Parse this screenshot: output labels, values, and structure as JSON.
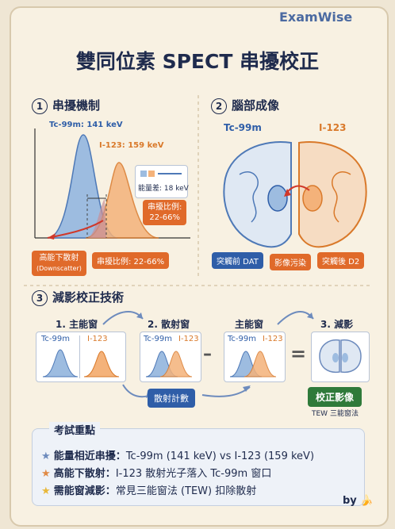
{
  "brand": "ExamWise",
  "title": "雙同位素 SPECT 串擾校正",
  "section1": {
    "num": "1",
    "heading": "串擾機制",
    "tc_label": "Tc-99m: 141 keV",
    "i_label": "I-123: 159 keV",
    "energy_diff": "能量差: 18 keV",
    "crosstalk_ratio_top": "串擾比例:",
    "crosstalk_ratio_top_val": "22-66%",
    "downscatter_label": "高能下散射",
    "downscatter_sub": "(Downscatter)",
    "crosstalk_ratio_bottom": "串擾比例: 22-66%"
  },
  "section2": {
    "num": "2",
    "heading": "腦部成像",
    "tc_label": "Tc-99m",
    "i_label": "I-123",
    "pre_dat": "突觸前 DAT",
    "contamination": "影像污染",
    "post_d2": "突觸後 D2"
  },
  "section3": {
    "num": "3",
    "heading": "減影校正技術",
    "step1": "1. 主能窗",
    "step2": "2. 散射窗",
    "step_main": "主能窗",
    "step3": "3. 減影",
    "tc": "Tc-99m",
    "i": "I-123",
    "minus": "–",
    "equals": "=",
    "scatter_count": "散射計數",
    "corrected": "校正影像",
    "tew": "TEW 三能窗法"
  },
  "key_points": {
    "heading": "考試重點",
    "items": [
      {
        "label": "能量相近串擾：",
        "text": "Tc-99m (141 keV) vs I-123 (159 keV)",
        "icon": "star-blue"
      },
      {
        "label": "高能下散射：",
        "text": "I-123 散射光子落入 Tc-99m 窗口",
        "icon": "star-orange"
      },
      {
        "label": "需能窗減影：",
        "text": "常見三能窗法 (TEW) 扣除散射",
        "icon": "star-yellow"
      }
    ]
  },
  "signature": "by"
}
